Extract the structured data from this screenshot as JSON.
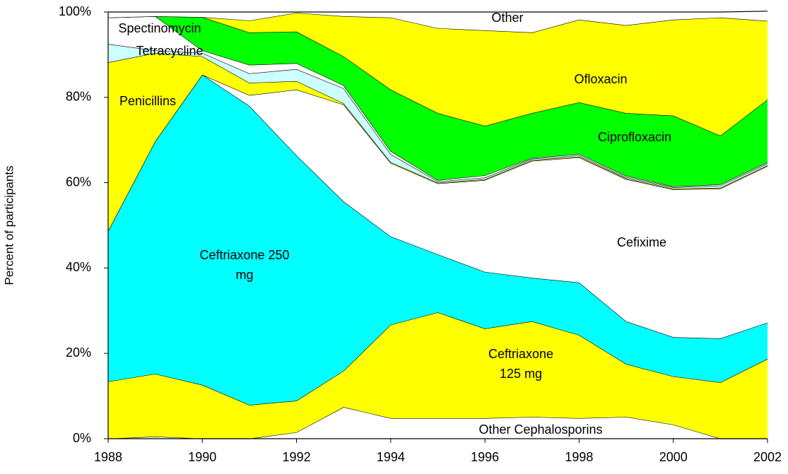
{
  "chart_data": {
    "type": "stacked_area",
    "y_label": "Percent of participants",
    "x": [
      1988,
      1989,
      1990,
      1991,
      1992,
      1993,
      1994,
      1995,
      1996,
      1997,
      1998,
      1999,
      2000,
      2001,
      2002
    ],
    "xlim": [
      1988,
      2002
    ],
    "xticks": [
      1988,
      1990,
      1992,
      1994,
      1996,
      1998,
      2000,
      2002
    ],
    "ylim": [
      0,
      100
    ],
    "yticks": [
      {
        "value": 0,
        "label": "0%"
      },
      {
        "value": 20,
        "label": "20%"
      },
      {
        "value": 40,
        "label": "40%"
      },
      {
        "value": 60,
        "label": "60%"
      },
      {
        "value": 80,
        "label": "80%"
      },
      {
        "value": 100,
        "label": "100%"
      }
    ],
    "series": [
      {
        "name": "Other Cephalosporins",
        "color": "#ffffff",
        "values": [
          0,
          0.5,
          0,
          0,
          1.5,
          7.4,
          4.8,
          4.8,
          4.8,
          5.1,
          4.8,
          5.1,
          3.3,
          0,
          0
        ]
      },
      {
        "name": "Ceftriaxone 125 mg",
        "color": "#ffff00",
        "values": [
          13.4,
          14.7,
          12.6,
          7.9,
          7.4,
          8.5,
          21.9,
          24.8,
          21.0,
          22.4,
          19.5,
          12.4,
          11.3,
          13.2,
          18.7
        ]
      },
      {
        "name": "Ceftriaxone 250 mg",
        "color": "#00ffff",
        "values": [
          35.3,
          54.5,
          72.7,
          70.1,
          57.5,
          39.7,
          20.7,
          13.6,
          13.3,
          10.2,
          12.3,
          10.0,
          9.2,
          10.3,
          8.5
        ]
      },
      {
        "name": "Cefixime",
        "color": "#ffffff",
        "values": [
          0,
          0,
          0,
          2.5,
          15.4,
          22.7,
          17.2,
          16.6,
          21.5,
          27.4,
          29.3,
          33.3,
          34.6,
          35.1,
          36.7
        ]
      },
      {
        "name": "Penicillins",
        "color": "#ffff00",
        "values": [
          39.5,
          20.7,
          4.3,
          2.9,
          2.0,
          0.3,
          0.2,
          0.2,
          0.2,
          0.2,
          0.2,
          0.2,
          0.2,
          0.2,
          0.2
        ]
      },
      {
        "name": "Tetracycline",
        "color": "#ccffff",
        "values": [
          4.3,
          0.6,
          0.8,
          2.2,
          2.8,
          3.5,
          1.9,
          0.3,
          0.4,
          0.3,
          0.3,
          0.3,
          0.3,
          0.5,
          0.4
        ]
      },
      {
        "name": "Spectinomycin",
        "color": "#ffffff",
        "values": [
          6.2,
          8.0,
          0.6,
          2.0,
          1.4,
          0.7,
          0.7,
          0.3,
          0.5,
          0.2,
          0.3,
          0.3,
          0.2,
          0.3,
          0.3
        ]
      },
      {
        "name": "Ciprofloxacin",
        "color": "#00ff00",
        "values": [
          0,
          0,
          7.8,
          7.6,
          7.4,
          6.8,
          14.4,
          15.7,
          11.6,
          10.5,
          12.1,
          14.7,
          16.6,
          11.4,
          14.7
        ]
      },
      {
        "name": "Ofloxacin",
        "color": "#ffff00",
        "values": [
          0,
          0,
          0,
          2.8,
          4.4,
          9.4,
          16.9,
          19.9,
          22.4,
          18.9,
          19.4,
          20.6,
          22.5,
          27.7,
          18.4
        ]
      },
      {
        "name": "Other",
        "color": "#ffffff",
        "values": [
          1.3,
          1.0,
          1.2,
          2.0,
          0.2,
          1.0,
          1.3,
          3.8,
          4.3,
          4.8,
          1.8,
          3.1,
          1.8,
          1.3,
          2.3
        ]
      }
    ]
  }
}
